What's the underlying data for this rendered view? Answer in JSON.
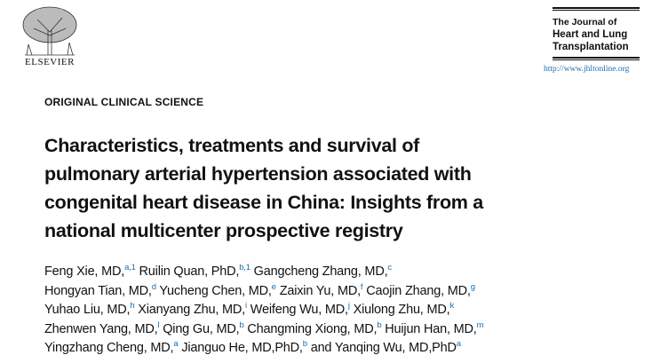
{
  "publisher": {
    "name": "ELSEVIER"
  },
  "journal": {
    "title_lines": [
      "The Journal of",
      "Heart and Lung",
      "Transplantation"
    ],
    "url": "http://www.jhltonline.org"
  },
  "section": "ORIGINAL CLINICAL SCIENCE",
  "title_lines": [
    "Characteristics, treatments and survival of",
    "pulmonary arterial hypertension associated with",
    "congenital heart disease in China: Insights from a",
    "national multicenter prospective registry"
  ],
  "authors": [
    [
      {
        "name": "Feng Xie, MD,",
        "sup": "a,1"
      },
      {
        "name": "Ruilin Quan, PhD,",
        "sup": "b,1"
      },
      {
        "name": "Gangcheng Zhang, MD,",
        "sup": "c"
      }
    ],
    [
      {
        "name": "Hongyan Tian, MD,",
        "sup": "d"
      },
      {
        "name": "Yucheng Chen, MD,",
        "sup": "e"
      },
      {
        "name": "Zaixin Yu, MD,",
        "sup": "f"
      },
      {
        "name": "Caojin Zhang, MD,",
        "sup": "g"
      }
    ],
    [
      {
        "name": "Yuhao Liu, MD,",
        "sup": "h"
      },
      {
        "name": "Xianyang Zhu, MD,",
        "sup": "i"
      },
      {
        "name": "Weifeng Wu, MD,",
        "sup": "j"
      },
      {
        "name": "Xiulong Zhu, MD,",
        "sup": "k"
      }
    ],
    [
      {
        "name": "Zhenwen Yang, MD,",
        "sup": "l"
      },
      {
        "name": "Qing Gu, MD,",
        "sup": "b"
      },
      {
        "name": "Changming Xiong, MD,",
        "sup": "b"
      },
      {
        "name": "Huijun Han, MD,",
        "sup": "m"
      }
    ],
    [
      {
        "name": "Yingzhang Cheng, MD,",
        "sup": "a"
      },
      {
        "name": "Jianguo He, MD,PhD,",
        "sup": "b"
      },
      {
        "name": "and Yanqing Wu, MD,PhD",
        "sup": "a"
      }
    ]
  ],
  "colors": {
    "link": "#1a6fb0"
  }
}
